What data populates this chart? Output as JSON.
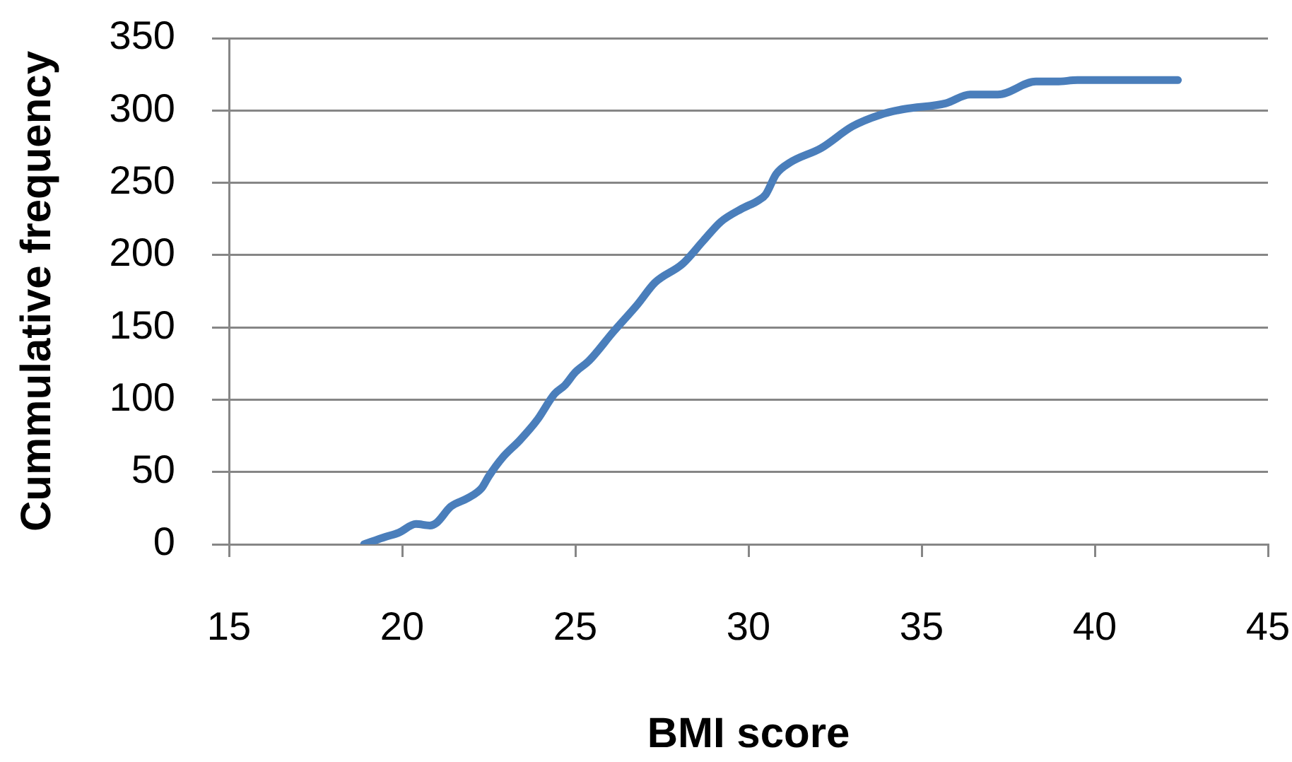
{
  "chart_data": {
    "type": "line",
    "xlabel": "BMI score",
    "ylabel": "Cummulative frequency",
    "x": [
      18.9,
      19.5,
      19.9,
      20.4,
      20.8,
      21.0,
      21.4,
      21.9,
      22.3,
      22.5,
      22.9,
      23.4,
      23.9,
      24.4,
      24.7,
      25.0,
      25.4,
      26.1,
      26.8,
      27.3,
      28.1,
      28.7,
      29.2,
      29.8,
      30.3,
      30.5,
      30.8,
      31.2,
      32.1,
      33.0,
      33.8,
      34.5,
      35.7,
      36.4,
      37.2,
      38.3,
      38.9,
      39.5,
      42.4
    ],
    "series": [
      {
        "color": "#4a7ebb",
        "values": [
          0,
          5,
          8,
          14,
          13,
          15,
          26,
          32,
          39,
          47,
          60,
          72,
          86,
          104,
          110,
          119,
          127,
          147,
          166,
          181,
          194,
          210,
          223,
          232,
          238,
          242,
          256,
          264,
          274,
          289,
          297,
          301,
          305,
          311,
          311,
          320,
          320,
          321,
          321
        ]
      }
    ],
    "xlim": [
      15,
      45
    ],
    "xticks": [
      15,
      20,
      25,
      30,
      35,
      40,
      45
    ],
    "ylim": [
      0,
      350
    ],
    "yticks": [
      0,
      50,
      100,
      150,
      200,
      250,
      300,
      350
    ],
    "grid": "y"
  }
}
